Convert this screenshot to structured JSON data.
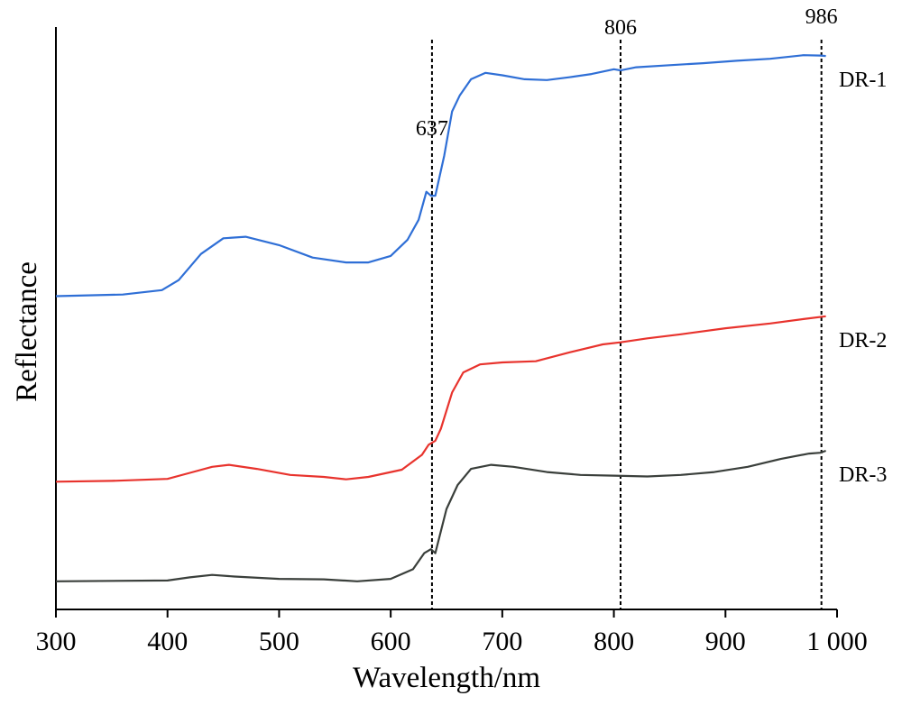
{
  "chart_data": {
    "type": "line",
    "title": "",
    "xlabel": "Wavelength/nm",
    "ylabel": "Reflectance",
    "xlim": [
      300,
      1000
    ],
    "x_ticks": [
      300,
      400,
      500,
      600,
      700,
      800,
      900,
      1000
    ],
    "x_tick_labels": [
      "300",
      "400",
      "500",
      "600",
      "700",
      "800",
      "900",
      "1 000"
    ],
    "y_ticks_shown": false,
    "grid": false,
    "legend": "none",
    "vlines": [
      {
        "x": 637,
        "label": "637"
      },
      {
        "x": 806,
        "label": "806"
      },
      {
        "x": 986,
        "label": "986"
      }
    ],
    "series": [
      {
        "name": "DR-1",
        "color": "#2f6fd6",
        "points": [
          [
            300,
            0.73
          ],
          [
            360,
            0.734
          ],
          [
            395,
            0.745
          ],
          [
            410,
            0.77
          ],
          [
            430,
            0.835
          ],
          [
            450,
            0.874
          ],
          [
            470,
            0.878
          ],
          [
            500,
            0.857
          ],
          [
            530,
            0.826
          ],
          [
            560,
            0.814
          ],
          [
            580,
            0.814
          ],
          [
            600,
            0.83
          ],
          [
            615,
            0.87
          ],
          [
            625,
            0.92
          ],
          [
            632,
            0.99
          ],
          [
            636,
            0.98
          ],
          [
            640,
            0.98
          ],
          [
            648,
            1.08
          ],
          [
            655,
            1.19
          ],
          [
            662,
            1.23
          ],
          [
            672,
            1.27
          ],
          [
            685,
            1.286
          ],
          [
            700,
            1.28
          ],
          [
            720,
            1.27
          ],
          [
            740,
            1.268
          ],
          [
            760,
            1.275
          ],
          [
            780,
            1.283
          ],
          [
            800,
            1.295
          ],
          [
            806,
            1.292
          ],
          [
            820,
            1.3
          ],
          [
            850,
            1.305
          ],
          [
            880,
            1.31
          ],
          [
            910,
            1.316
          ],
          [
            940,
            1.321
          ],
          [
            970,
            1.33
          ],
          [
            985,
            1.329
          ],
          [
            990,
            1.328
          ]
        ]
      },
      {
        "name": "DR-2",
        "color": "#e8332d",
        "points": [
          [
            300,
            0.268
          ],
          [
            350,
            0.27
          ],
          [
            400,
            0.275
          ],
          [
            420,
            0.29
          ],
          [
            440,
            0.305
          ],
          [
            455,
            0.31
          ],
          [
            480,
            0.3
          ],
          [
            510,
            0.285
          ],
          [
            540,
            0.28
          ],
          [
            560,
            0.274
          ],
          [
            580,
            0.28
          ],
          [
            610,
            0.298
          ],
          [
            628,
            0.335
          ],
          [
            634,
            0.36
          ],
          [
            640,
            0.37
          ],
          [
            645,
            0.4
          ],
          [
            655,
            0.49
          ],
          [
            665,
            0.54
          ],
          [
            680,
            0.56
          ],
          [
            700,
            0.565
          ],
          [
            730,
            0.568
          ],
          [
            760,
            0.59
          ],
          [
            790,
            0.61
          ],
          [
            806,
            0.615
          ],
          [
            830,
            0.625
          ],
          [
            860,
            0.635
          ],
          [
            900,
            0.65
          ],
          [
            940,
            0.662
          ],
          [
            970,
            0.673
          ],
          [
            990,
            0.68
          ]
        ]
      },
      {
        "name": "DR-3",
        "color": "#3a3f3b",
        "points": [
          [
            300,
            0.02
          ],
          [
            400,
            0.022
          ],
          [
            420,
            0.03
          ],
          [
            440,
            0.036
          ],
          [
            460,
            0.032
          ],
          [
            500,
            0.026
          ],
          [
            540,
            0.025
          ],
          [
            570,
            0.02
          ],
          [
            600,
            0.026
          ],
          [
            620,
            0.05
          ],
          [
            630,
            0.09
          ],
          [
            636,
            0.1
          ],
          [
            640,
            0.09
          ],
          [
            650,
            0.2
          ],
          [
            660,
            0.26
          ],
          [
            672,
            0.3
          ],
          [
            690,
            0.31
          ],
          [
            710,
            0.305
          ],
          [
            740,
            0.292
          ],
          [
            770,
            0.285
          ],
          [
            800,
            0.283
          ],
          [
            830,
            0.281
          ],
          [
            860,
            0.285
          ],
          [
            890,
            0.292
          ],
          [
            920,
            0.305
          ],
          [
            950,
            0.325
          ],
          [
            975,
            0.338
          ],
          [
            985,
            0.34
          ],
          [
            990,
            0.345
          ]
        ]
      }
    ]
  }
}
